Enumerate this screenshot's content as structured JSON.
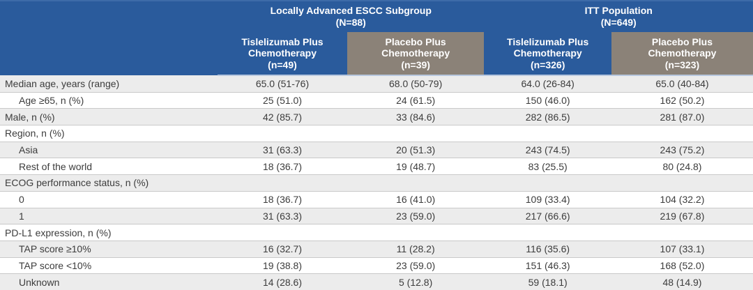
{
  "table": {
    "groups": [
      {
        "title": "Locally Advanced ESCC Subgroup",
        "n": "(N=88)"
      },
      {
        "title": "ITT Population",
        "n": "(N=649)"
      }
    ],
    "columns": [
      {
        "label": "Tislelizumab Plus Chemotherapy",
        "n": "(n=49)",
        "variant": "blue"
      },
      {
        "label": "Placebo Plus Chemotherapy",
        "n": "(n=39)",
        "variant": "gray"
      },
      {
        "label": "Tislelizumab Plus Chemotherapy",
        "n": "(n=326)",
        "variant": "blue"
      },
      {
        "label": "Placebo Plus Chemotherapy",
        "n": "(n=323)",
        "variant": "gray"
      }
    ],
    "rows": [
      {
        "label": "Median age, years (range)",
        "indent": false,
        "values": [
          "65.0 (51-76)",
          "68.0 (50-79)",
          "64.0 (26-84)",
          "65.0 (40-84)"
        ]
      },
      {
        "label": "Age ≥65, n (%)",
        "indent": true,
        "values": [
          "25 (51.0)",
          "24 (61.5)",
          "150 (46.0)",
          "162 (50.2)"
        ]
      },
      {
        "label": "Male, n (%)",
        "indent": false,
        "values": [
          "42 (85.7)",
          "33 (84.6)",
          "282 (86.5)",
          "281 (87.0)"
        ]
      },
      {
        "label": "Region, n (%)",
        "indent": false,
        "values": [
          "",
          "",
          "",
          ""
        ]
      },
      {
        "label": "Asia",
        "indent": true,
        "values": [
          "31 (63.3)",
          "20 (51.3)",
          "243 (74.5)",
          "243 (75.2)"
        ]
      },
      {
        "label": "Rest of the world",
        "indent": true,
        "values": [
          "18 (36.7)",
          "19 (48.7)",
          "83 (25.5)",
          "80 (24.8)"
        ]
      },
      {
        "label": "ECOG performance status, n (%)",
        "indent": false,
        "values": [
          "",
          "",
          "",
          ""
        ]
      },
      {
        "label": "0",
        "indent": true,
        "values": [
          "18 (36.7)",
          "16 (41.0)",
          "109 (33.4)",
          "104 (32.2)"
        ]
      },
      {
        "label": "1",
        "indent": true,
        "values": [
          "31 (63.3)",
          "23 (59.0)",
          "217 (66.6)",
          "219 (67.8)"
        ]
      },
      {
        "label": "PD-L1 expression, n (%)",
        "indent": false,
        "values": [
          "",
          "",
          "",
          ""
        ]
      },
      {
        "label": "TAP score ≥10%",
        "indent": true,
        "values": [
          "16 (32.7)",
          "11 (28.2)",
          "116 (35.6)",
          "107 (33.1)"
        ]
      },
      {
        "label": "TAP score <10%",
        "indent": true,
        "values": [
          "19 (38.8)",
          "23 (59.0)",
          "151 (46.3)",
          "168 (52.0)"
        ]
      },
      {
        "label": "Unknown",
        "indent": true,
        "values": [
          "14 (28.6)",
          "5 (12.8)",
          "59 (18.1)",
          "48 (14.9)"
        ]
      }
    ],
    "colors": {
      "header_blue": "#2a5b9c",
      "header_gray": "#8b8278",
      "row_shade": "#ececec",
      "divider": "#c9c9c9",
      "header_text": "#ffffff",
      "body_text": "#3c3c3c"
    }
  }
}
